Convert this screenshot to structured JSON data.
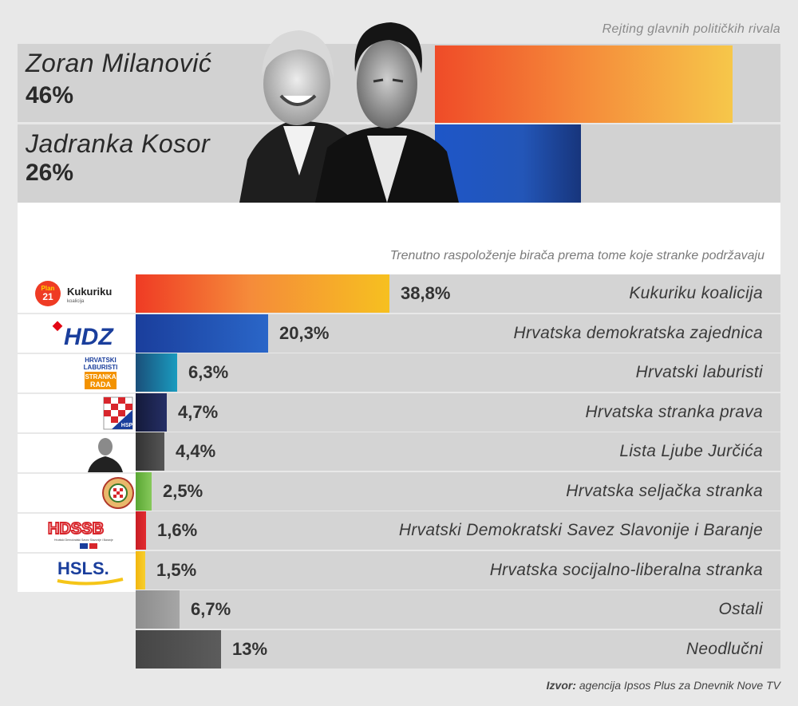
{
  "top": {
    "title": "Rejting glavnih političkih rivala",
    "rivals": [
      {
        "name": "Zoran Milanović",
        "pct_label": "46%",
        "value": 46
      },
      {
        "name": "Jadranka Kosor",
        "pct_label": "26%",
        "value": 26
      }
    ]
  },
  "chart_data": {
    "type": "bar",
    "title": "Trenutno raspoloženje birača prema tome koje stranke podržavaju",
    "categories": [
      "Kukuriku koalicija",
      "Hrvatska demokratska zajednica",
      "Hrvatski laburisti",
      "Hrvatska stranka prava",
      "Lista Ljube Jurčića",
      "Hrvatska seljačka stranka",
      "Hrvatski Demokratski Savez Slavonije i Baranje",
      "Hrvatska socijalno-liberalna stranka",
      "Ostali",
      "Neodlučni"
    ],
    "values": [
      38.8,
      20.3,
      6.3,
      4.7,
      4.4,
      2.5,
      1.6,
      1.5,
      6.7,
      13
    ],
    "value_labels": [
      "38,8%",
      "20,3%",
      "6,3%",
      "4,7%",
      "4,4%",
      "2,5%",
      "1,6%",
      "1,5%",
      "6,7%",
      "13%"
    ],
    "colors": [
      "#ef3b24",
      "#1e4fa8",
      "#1a8fb0",
      "#1d2450",
      "#454545",
      "#6fbb44",
      "#d8262c",
      "#f5c518",
      "#9a9a9a",
      "#555555"
    ]
  },
  "logos": {
    "kukuriku": {
      "top": "Plan",
      "num": "21",
      "name": "Kukuriku",
      "sub": "koalicija"
    },
    "hdz": "HDZ",
    "laburisti": {
      "l1": "HRVATSKI",
      "l2": "LABURISTI",
      "l3": "STRANKA",
      "l4": "RADA"
    },
    "hsp": "HSP",
    "hdssb": {
      "name": "HDSSB",
      "sub": "Hrvatski Demokratski Savez Slavonije i Baranje"
    },
    "hsls": "HSLS."
  },
  "source": {
    "label": "Izvor:",
    "text": " agencija Ipsos Plus za Dnevnik Nove TV"
  }
}
